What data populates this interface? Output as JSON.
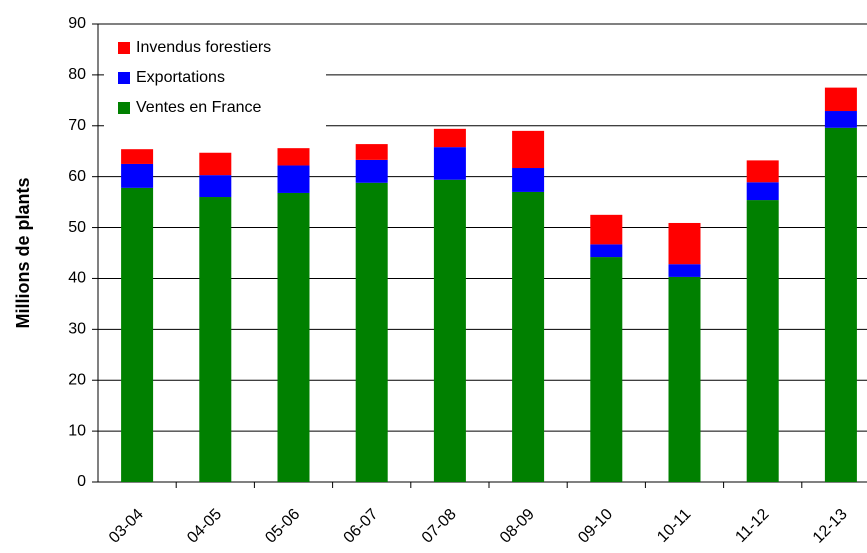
{
  "chart_data": {
    "type": "stacked_bar",
    "y_label": "Millions de plants",
    "categories": [
      "03-04",
      "04-05",
      "05-06",
      "06-07",
      "07-08",
      "08-09",
      "09-10",
      "10-11",
      "11-12",
      "12-13"
    ],
    "series": [
      {
        "name": "Ventes en France",
        "color": "#008000",
        "values": [
          57.8,
          56,
          56.8,
          58.8,
          59.4,
          57,
          44.2,
          40.3,
          55.4,
          69.6
        ]
      },
      {
        "name": "Exportations",
        "color": "#0000ff",
        "values": [
          4.7,
          4.3,
          5.4,
          4.5,
          6.4,
          4.7,
          2.5,
          2.5,
          3.5,
          3.3
        ]
      },
      {
        "name": "Invendus forestiers",
        "color": "#ff0000",
        "values": [
          2.9,
          4.4,
          3.4,
          3.1,
          3.6,
          7.3,
          5.8,
          8.1,
          4.3,
          4.6
        ]
      }
    ],
    "ylim": [
      0,
      90
    ],
    "yticks": [
      0,
      10,
      20,
      30,
      40,
      50,
      60,
      70,
      80,
      90
    ],
    "grid": true
  }
}
